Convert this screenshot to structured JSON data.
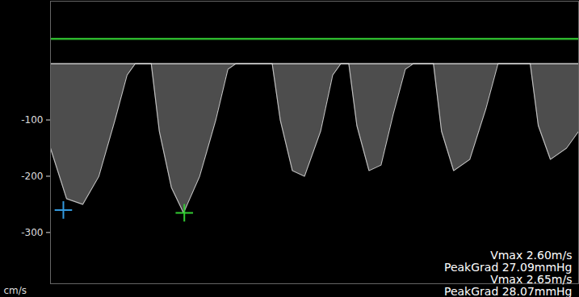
{
  "chart_data": {
    "type": "doppler",
    "y_label": "cm/s",
    "ylim": [
      -391,
      111
    ],
    "yticks": [
      -100,
      -200,
      -300
    ],
    "xlim": [
      0,
      655
    ],
    "tick_labels": "y",
    "color": "#8c8c8c",
    "baseline": {
      "value": 0,
      "color": "#ffffff"
    },
    "reference_line": {
      "value": 44,
      "color": "#2db52d"
    },
    "x": [
      0,
      20,
      40,
      60,
      80,
      95,
      105,
      125,
      135,
      150,
      165,
      185,
      205,
      220,
      230,
      275,
      285,
      300,
      315,
      335,
      350,
      360,
      370,
      380,
      395,
      410,
      425,
      440,
      450,
      475,
      485,
      500,
      520,
      540,
      555,
      595,
      605,
      620,
      640,
      655
    ],
    "values": [
      -150,
      -240,
      -250,
      -200,
      -100,
      -20,
      0,
      0,
      -120,
      -220,
      -265,
      -200,
      -100,
      -10,
      0,
      0,
      -100,
      -190,
      -200,
      -120,
      -20,
      0,
      0,
      -110,
      -190,
      -180,
      -90,
      -10,
      0,
      0,
      -120,
      -190,
      -170,
      -80,
      0,
      0,
      -110,
      -170,
      -150,
      -120
    ],
    "cursors": [
      {
        "x": 16,
        "value": -260,
        "color": "#3399dd",
        "marker": "plus"
      },
      {
        "x": 166,
        "value": -265,
        "color": "#33cc33",
        "marker": "plus"
      }
    ],
    "annotations": [
      "Vmax 2.60m/s",
      "PeakGrad 27.09mmHg",
      "Vmax 2.65m/s",
      "PeakGrad 28.07mmHg"
    ]
  }
}
